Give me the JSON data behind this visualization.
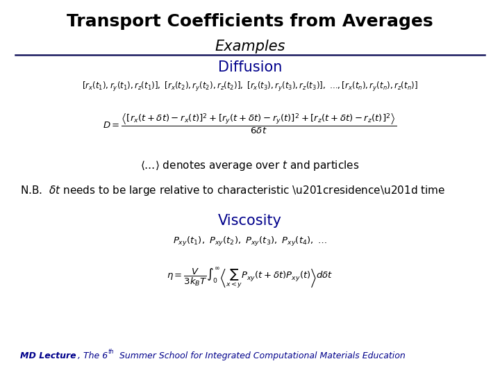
{
  "title": "Transport Coefficients from Averages",
  "subtitle": "Examples",
  "title_color": "#000000",
  "subtitle_color": "#000000",
  "diffusion_label": "Diffusion",
  "diffusion_color": "#00008B",
  "viscosity_label": "Viscosity",
  "viscosity_color": "#00008B",
  "background_color": "#ffffff",
  "line_color": "#1a1a5e",
  "text_color": "#000000",
  "footer_color": "#00008B",
  "title_fontsize": 18,
  "subtitle_fontsize": 15,
  "diffusion_label_fontsize": 15,
  "viscosity_label_fontsize": 15,
  "series_fontsize": 8.5,
  "eq_fontsize": 9.5,
  "body_fontsize": 11,
  "footer_fontsize": 9
}
